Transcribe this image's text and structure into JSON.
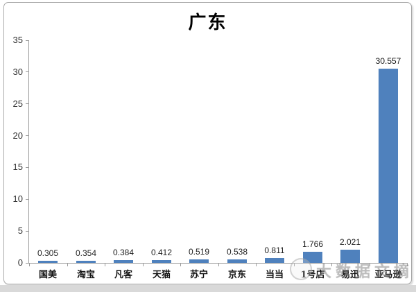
{
  "figure": {
    "title": "广东"
  },
  "watermark": {
    "icon": "circular-logo-icon",
    "text": "大数据文摘"
  },
  "colors": {
    "bar": "#4F81BD",
    "axis": "#9b9b9b",
    "border": "#a9a9a9",
    "strip": "#d9d9d9"
  },
  "chart_data": {
    "type": "bar",
    "title": "广东",
    "categories": [
      "国美",
      "淘宝",
      "凡客",
      "天猫",
      "苏宁",
      "京东",
      "当当",
      "1号店",
      "易迅",
      "亚马逊"
    ],
    "values": [
      0.305,
      0.354,
      0.384,
      0.412,
      0.519,
      0.538,
      0.811,
      1.766,
      2.021,
      30.557
    ],
    "data_labels": [
      "0.305",
      "0.354",
      "0.384",
      "0.412",
      "0.519",
      "0.538",
      "0.811",
      "1.766",
      "2.021",
      "30.557"
    ],
    "xlabel": "",
    "ylabel": "",
    "ylim": [
      0,
      35
    ],
    "yticks": [
      0,
      5,
      10,
      15,
      20,
      25,
      30,
      35
    ],
    "grid": false,
    "legend": false,
    "bar_color": "#4F81BD"
  }
}
